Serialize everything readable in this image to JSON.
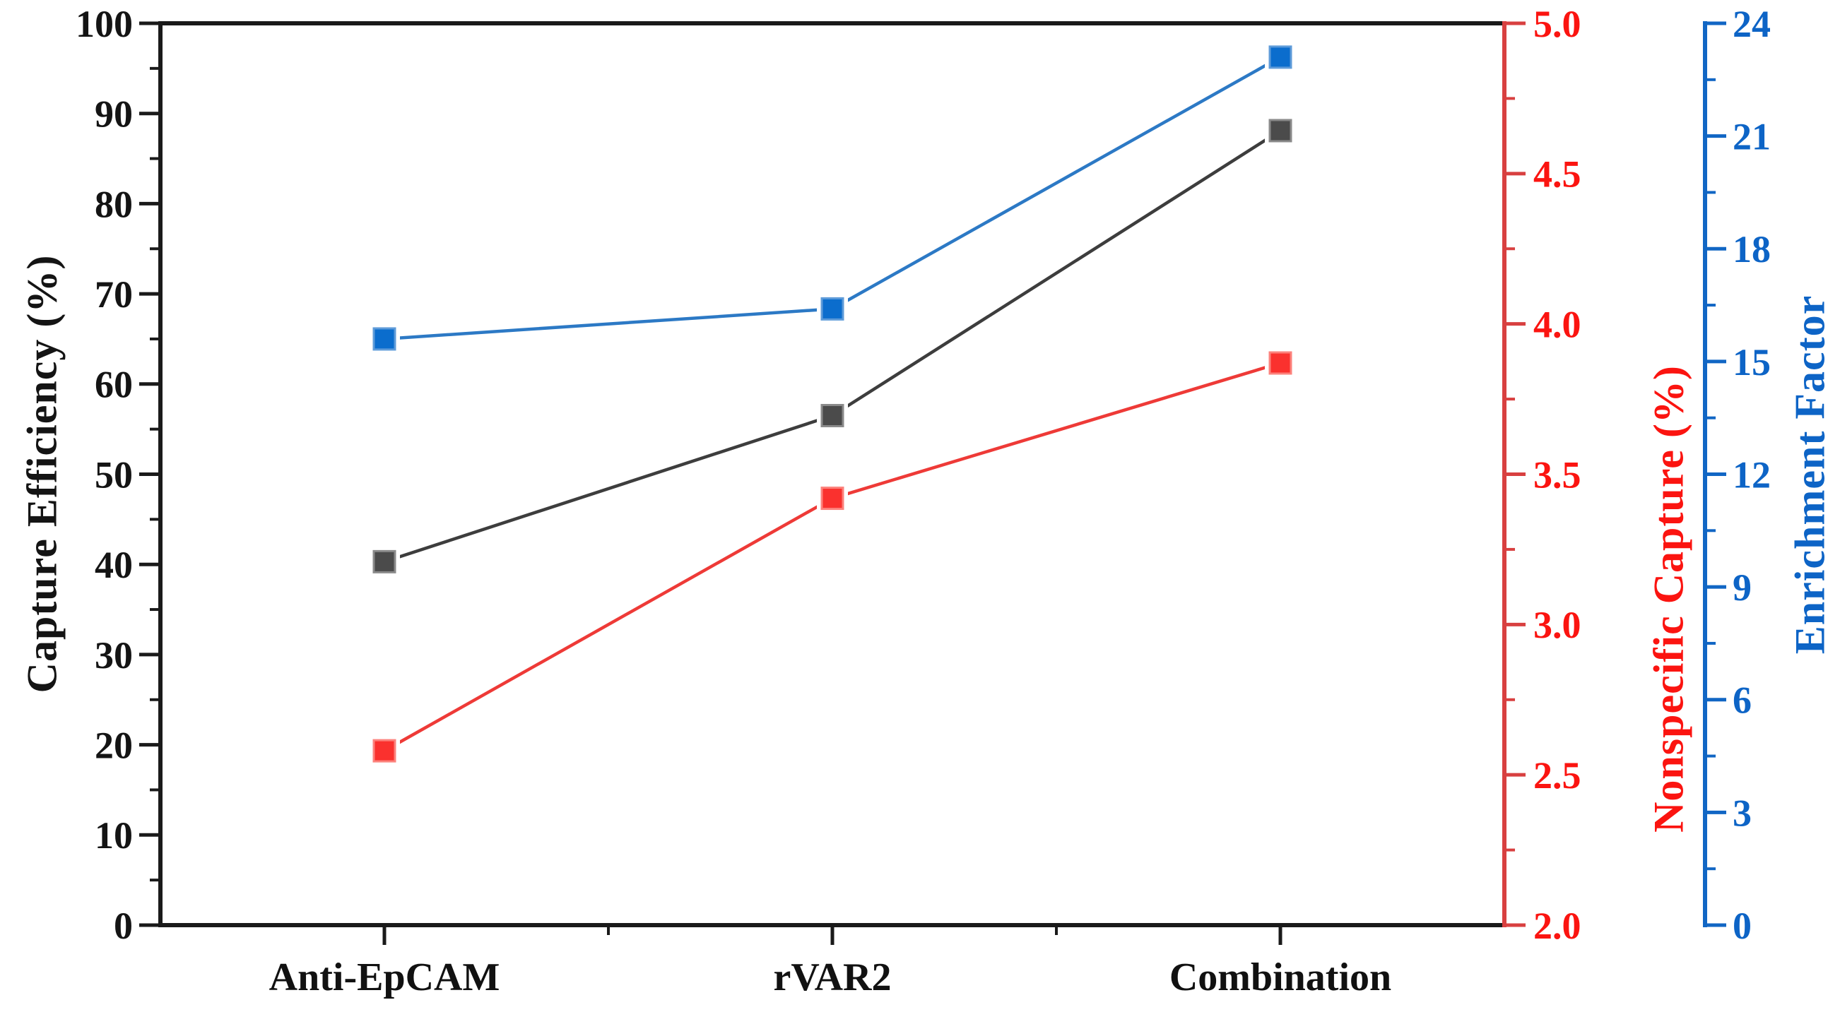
{
  "chart_data": {
    "type": "line",
    "title": "",
    "categories": [
      "Anti-EpCAM",
      "rVAR2",
      "Combination"
    ],
    "series": [
      {
        "name": "Capture Efficiency (%)",
        "axis": "left",
        "values": [
          40.3,
          56.5,
          88.1
        ],
        "line_color": "#3d3d3d",
        "marker_color": "#4b4b4b",
        "marker_edge": "#8a8a8a"
      },
      {
        "name": "Nonspecific Capture (%)",
        "axis": "red",
        "values": [
          2.58,
          3.42,
          3.87
        ],
        "line_color": "#ee3a37",
        "marker_color": "#fa312e",
        "marker_edge": "#fc827c"
      },
      {
        "name": "Enrichment Factor",
        "axis": "blue",
        "values": [
          15.6,
          16.4,
          23.1
        ],
        "line_color": "#2c79c5",
        "marker_color": "#0b6dcd",
        "marker_edge": "#5e9bd9"
      }
    ],
    "axes": {
      "left": {
        "label": "Capture Efficiency (%)",
        "min": 0,
        "max": 100,
        "major_step": 10,
        "minor_step": 5,
        "decimals": 0,
        "text_color": "#141414",
        "line_color": "#1a1a1a"
      },
      "red": {
        "label": "Nonspecific Capture (%)",
        "min": 2.0,
        "max": 5.0,
        "major_step": 0.5,
        "minor_step": 0.25,
        "decimals": 1,
        "text_color": "#fb1410",
        "line_color": "#d84040"
      },
      "blue": {
        "label": "Enrichment Factor",
        "min": 0,
        "max": 24,
        "major_step": 3,
        "minor_step": 1.5,
        "decimals": 0,
        "text_color": "#0d64c6",
        "line_color": "#1166c4"
      },
      "x": {
        "text_color": "#111111",
        "line_color": "#1a1a1a"
      }
    },
    "grid": false,
    "legend_position": "none"
  }
}
